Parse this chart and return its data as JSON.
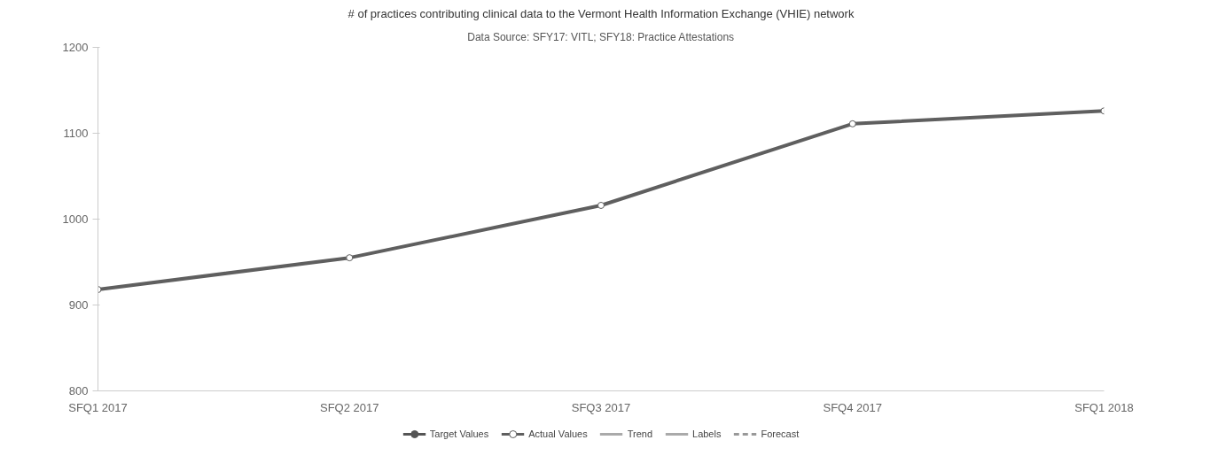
{
  "chart_data": {
    "type": "line",
    "title": "# of practices contributing clinical data to the Vermont Health Information Exchange (VHIE) network",
    "subtitle": "Data Source: SFY17: VITL; SFY18: Practice Attestations",
    "categories": [
      "SFQ1 2017",
      "SFQ2 2017",
      "SFQ3 2017",
      "SFQ4 2017",
      "SFQ1 2018"
    ],
    "series": [
      {
        "name": "Target Values",
        "color": "#555555",
        "marker": "circle",
        "values": [
          null,
          null,
          null,
          null,
          null
        ]
      },
      {
        "name": "Actual Values",
        "color": "#5f5f5f",
        "marker": "circle",
        "values": [
          918,
          955,
          1016,
          1111,
          1126
        ]
      },
      {
        "name": "Trend",
        "color": "#aaaaaa",
        "marker": "none",
        "values": [
          null,
          null,
          null,
          null,
          null
        ]
      },
      {
        "name": "Labels",
        "color": "#aaaaaa",
        "marker": "none",
        "values": [
          null,
          null,
          null,
          null,
          null
        ]
      },
      {
        "name": "Forecast",
        "color": "#999999",
        "marker": "none",
        "line_style": "dashed",
        "values": [
          null,
          null,
          null,
          null,
          null
        ]
      }
    ],
    "ylim": [
      800,
      1200
    ],
    "yticks": [
      800,
      900,
      1000,
      1100,
      1200
    ],
    "grid": false,
    "legend": "bottom"
  }
}
